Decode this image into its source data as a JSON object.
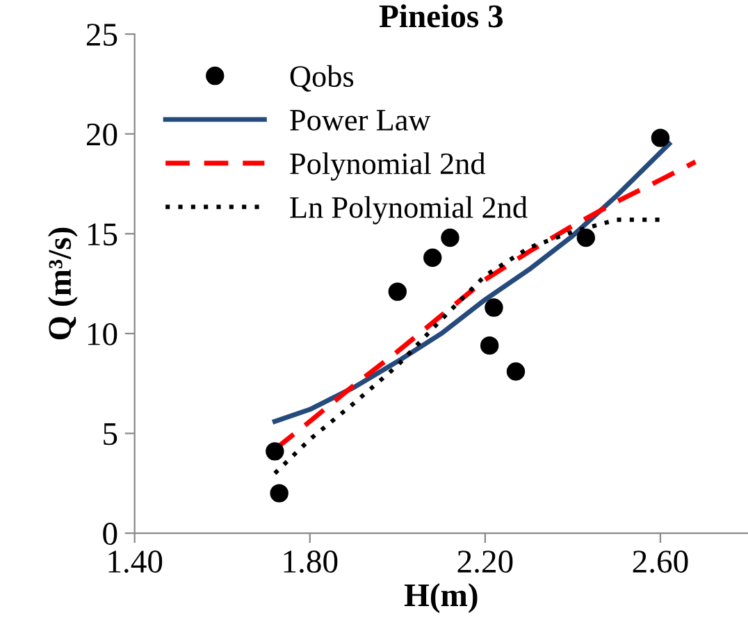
{
  "chart_data": {
    "type": "line",
    "title": "Pineios 3",
    "xlabel": "H(m)",
    "ylabel": "Q (m³/s)",
    "xlim": [
      1.4,
      2.8
    ],
    "xticks": [
      {
        "value": 1.4,
        "label": "1.40"
      },
      {
        "value": 1.8,
        "label": "1.80"
      },
      {
        "value": 2.2,
        "label": "2.20"
      },
      {
        "value": 2.6,
        "label": "2.60"
      }
    ],
    "ylim": [
      0,
      25
    ],
    "yticks": [
      0,
      5,
      10,
      15,
      20,
      25
    ],
    "grid": false,
    "legend": "top left",
    "series": [
      {
        "name": "Qobs",
        "type": "scatter",
        "marker": "circle",
        "color": "#000000",
        "x": [
          1.72,
          1.73,
          2.0,
          2.08,
          2.12,
          2.22,
          2.21,
          2.27,
          2.43,
          2.6
        ],
        "values": [
          4.1,
          2.0,
          12.1,
          13.8,
          14.8,
          11.3,
          9.4,
          8.1,
          14.8,
          19.8
        ]
      },
      {
        "name": "Power Law",
        "line_style": "solid",
        "color": "#254a7c",
        "x": [
          1.72,
          1.8,
          1.9,
          2.0,
          2.1,
          2.2,
          2.3,
          2.4,
          2.5,
          2.62
        ],
        "values": [
          5.6,
          6.2,
          7.3,
          8.6,
          10.0,
          11.7,
          13.2,
          14.9,
          16.9,
          19.5
        ]
      },
      {
        "name": "Polynomial 2nd",
        "line_style": "dashed",
        "color": "#ff0000",
        "x": [
          1.72,
          1.8,
          1.9,
          2.0,
          2.1,
          2.2,
          2.3,
          2.4,
          2.5,
          2.6,
          2.68
        ],
        "values": [
          4.2,
          5.6,
          7.4,
          9.1,
          10.9,
          12.7,
          14.1,
          15.4,
          16.6,
          17.7,
          18.6
        ]
      },
      {
        "name": "Ln Polynomial 2nd",
        "line_style": "dotted",
        "color": "#000000",
        "x": [
          1.72,
          1.8,
          1.9,
          2.0,
          2.1,
          2.2,
          2.3,
          2.4,
          2.5,
          2.6
        ],
        "values": [
          3.0,
          4.7,
          6.5,
          8.4,
          10.7,
          12.9,
          14.3,
          15.1,
          15.7,
          15.7
        ]
      }
    ]
  }
}
